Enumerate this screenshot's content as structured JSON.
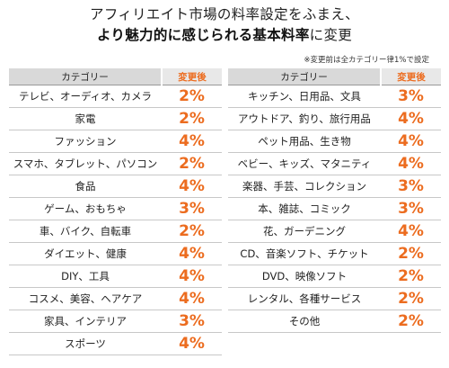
{
  "title_line1": "アフィリエイト市場の料率設定をふまえ、",
  "title_line2_bold": "より魅力的に感じられる基本料率",
  "title_line2_rest": "に変更",
  "note": "※変更前は全カテゴリー律1%で設定",
  "header_category": "カテゴリー",
  "header_rate": "変更後",
  "accent_color": "#ec6c1f",
  "left_rows": [
    {
      "category": "テレビ、オーディオ、カメラ",
      "rate": "2%"
    },
    {
      "category": "家電",
      "rate": "2%"
    },
    {
      "category": "ファッション",
      "rate": "4%"
    },
    {
      "category": "スマホ、タブレット、パソコン",
      "rate": "2%"
    },
    {
      "category": "食品",
      "rate": "4%"
    },
    {
      "category": "ゲーム、おもちゃ",
      "rate": "3%"
    },
    {
      "category": "車、バイク、自転車",
      "rate": "2%"
    },
    {
      "category": "ダイエット、健康",
      "rate": "4%"
    },
    {
      "category": "DIY、工具",
      "rate": "4%"
    },
    {
      "category": "コスメ、美容、ヘアケア",
      "rate": "4%"
    },
    {
      "category": "家具、インテリア",
      "rate": "3%"
    },
    {
      "category": "スポーツ",
      "rate": "4%"
    }
  ],
  "right_rows": [
    {
      "category": "キッチン、日用品、文具",
      "rate": "3%"
    },
    {
      "category": "アウトドア、釣り、旅行用品",
      "rate": "4%"
    },
    {
      "category": "ペット用品、生き物",
      "rate": "4%"
    },
    {
      "category": "ベビー、キッズ、マタニティ",
      "rate": "4%"
    },
    {
      "category": "楽器、手芸、コレクション",
      "rate": "3%"
    },
    {
      "category": "本、雑誌、コミック",
      "rate": "3%"
    },
    {
      "category": "花、ガーデニング",
      "rate": "4%"
    },
    {
      "category": "CD、音楽ソフト、チケット",
      "rate": "2%"
    },
    {
      "category": "DVD、映像ソフト",
      "rate": "2%"
    },
    {
      "category": "レンタル、各種サービス",
      "rate": "2%"
    },
    {
      "category": "その他",
      "rate": "2%"
    }
  ]
}
